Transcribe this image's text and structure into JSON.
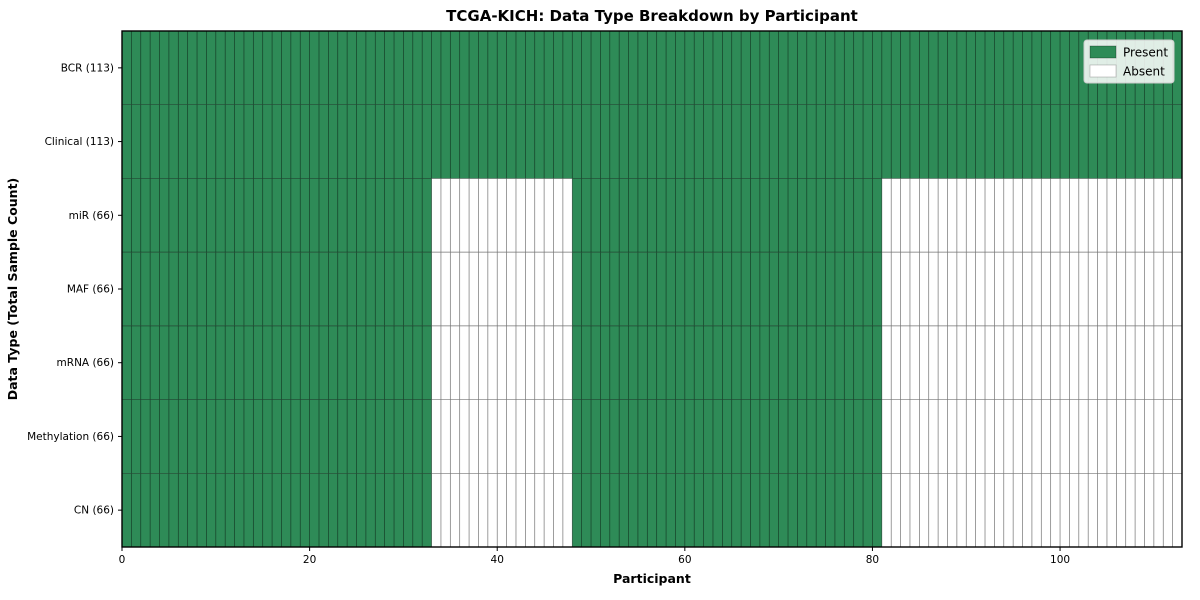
{
  "title": "TCGA-KICH: Data Type Breakdown by Participant",
  "chart_data": {
    "type": "heatmap",
    "title": "TCGA-KICH: Data Type Breakdown by Participant",
    "xlabel": "Participant",
    "ylabel": "Data Type (Total Sample Count)",
    "n_participants": 113,
    "x_ticks": [
      0,
      20,
      40,
      60,
      80,
      100
    ],
    "legend_position": "upper right",
    "grid": true,
    "legend": [
      {
        "label": "Present",
        "color": "#2e8b57"
      },
      {
        "label": "Absent",
        "color": "#ffffff"
      }
    ],
    "colors": {
      "present": "#2e8b57",
      "absent": "#ffffff",
      "grid": "rgba(0,0,0,0.55)",
      "border": "#000000",
      "legend_border": "#cccccc",
      "legend_bg": "rgba(255,255,255,0.85)"
    },
    "rows": [
      {
        "label": "BCR (113)",
        "total_samples": 113,
        "present_ranges": [
          [
            0,
            113
          ]
        ]
      },
      {
        "label": "Clinical (113)",
        "total_samples": 113,
        "present_ranges": [
          [
            0,
            113
          ]
        ]
      },
      {
        "label": "miR (66)",
        "total_samples": 66,
        "present_ranges": [
          [
            0,
            33
          ],
          [
            48,
            81
          ]
        ]
      },
      {
        "label": "MAF (66)",
        "total_samples": 66,
        "present_ranges": [
          [
            0,
            33
          ],
          [
            48,
            81
          ]
        ]
      },
      {
        "label": "mRNA (66)",
        "total_samples": 66,
        "present_ranges": [
          [
            0,
            33
          ],
          [
            48,
            81
          ]
        ]
      },
      {
        "label": "Methylation (66)",
        "total_samples": 66,
        "present_ranges": [
          [
            0,
            33
          ],
          [
            48,
            81
          ]
        ]
      },
      {
        "label": "CN (66)",
        "total_samples": 66,
        "present_ranges": [
          [
            0,
            33
          ],
          [
            48,
            81
          ]
        ]
      }
    ]
  }
}
